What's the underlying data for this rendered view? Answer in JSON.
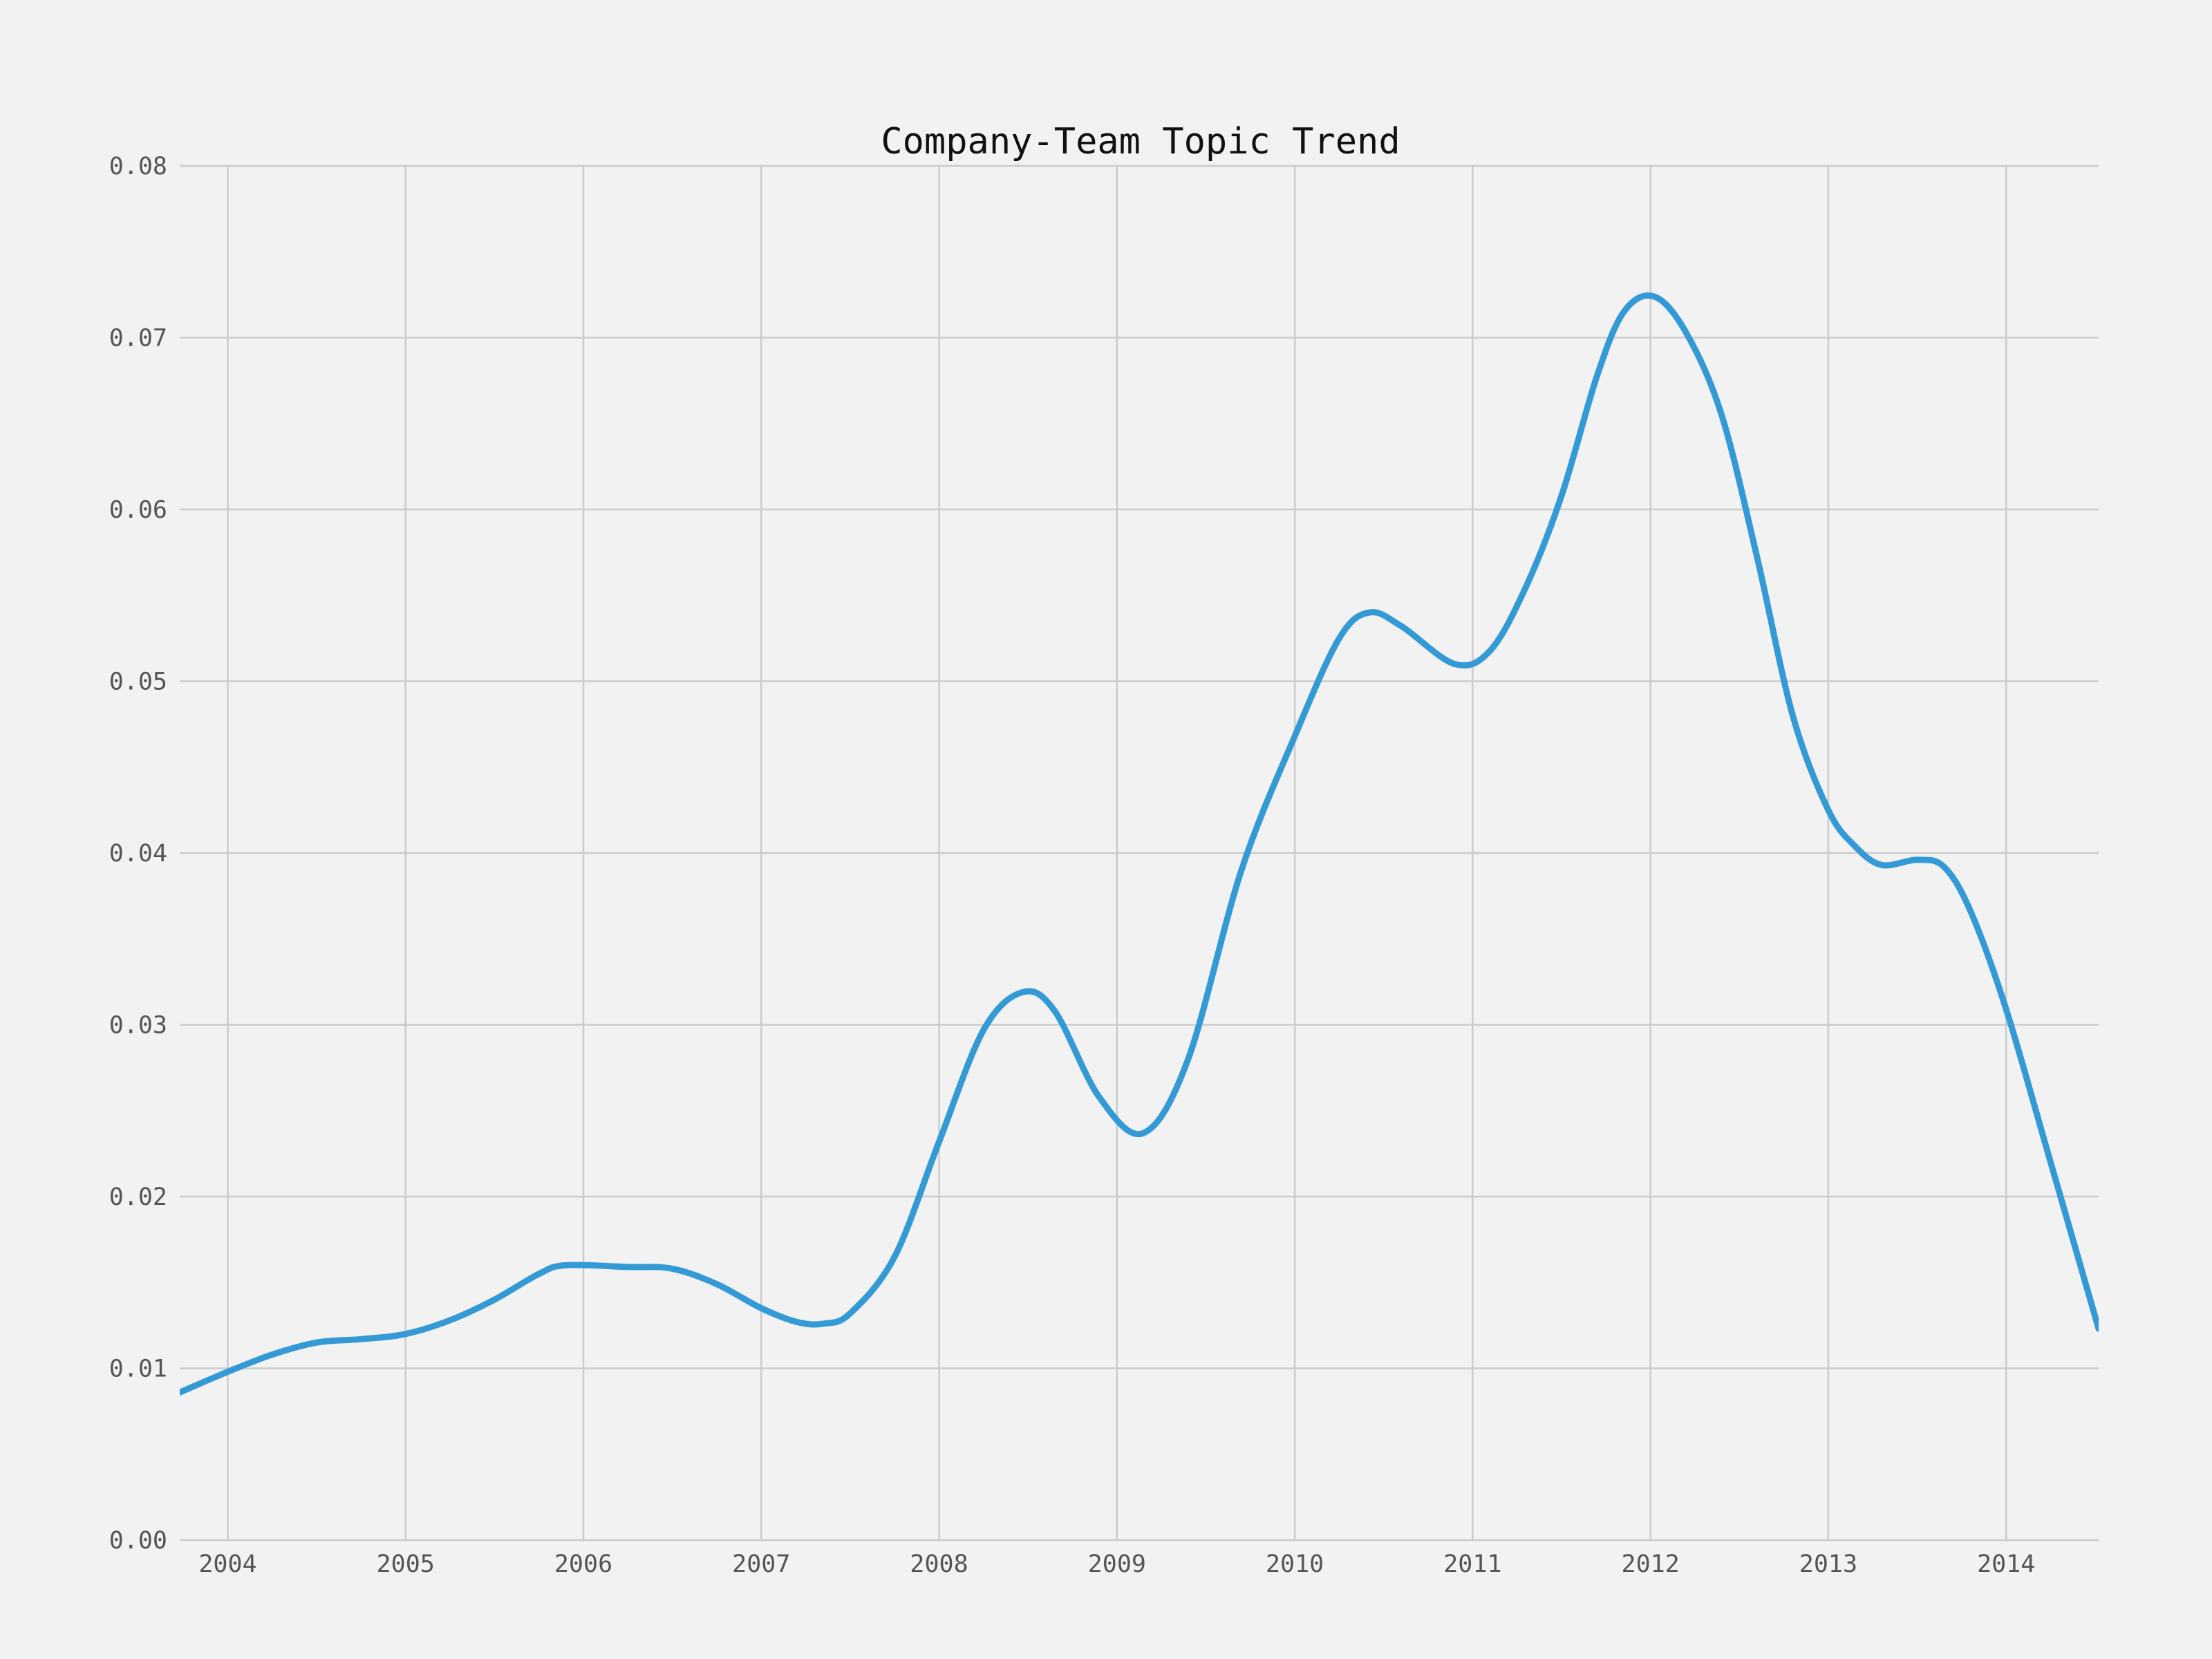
{
  "chart_data": {
    "type": "line",
    "title": "Company-Team Topic Trend",
    "xlabel": "",
    "ylabel": "",
    "xlim": [
      2003.73,
      2014.52
    ],
    "ylim": [
      0,
      0.08
    ],
    "x_ticks": [
      2004,
      2005,
      2006,
      2007,
      2008,
      2009,
      2010,
      2011,
      2012,
      2013,
      2014
    ],
    "x_tick_labels": [
      "2004",
      "2005",
      "2006",
      "2007",
      "2008",
      "2009",
      "2010",
      "2011",
      "2012",
      "2013",
      "2014"
    ],
    "y_ticks": [
      0,
      0.01,
      0.02,
      0.03,
      0.04,
      0.05,
      0.06,
      0.07,
      0.08
    ],
    "y_tick_labels": [
      "0.00",
      "0.01",
      "0.02",
      "0.03",
      "0.04",
      "0.05",
      "0.06",
      "0.07",
      "0.08"
    ],
    "grid": true,
    "legend": "none",
    "line_color": "#349ad5",
    "background_color": "#f2f2f2",
    "grid_color": "#cbcbcb",
    "series": [
      {
        "x": [
          2003.73,
          2004.0,
          2004.25,
          2004.5,
          2004.75,
          2005.0,
          2005.25,
          2005.5,
          2005.75,
          2005.9,
          2006.25,
          2006.5,
          2006.75,
          2007.0,
          2007.2,
          2007.35,
          2007.5,
          2007.75,
          2008.0,
          2008.25,
          2008.47,
          2008.65,
          2008.9,
          2009.15,
          2009.4,
          2009.7,
          2010.0,
          2010.25,
          2010.42,
          2010.6,
          2010.9,
          2011.1,
          2011.3,
          2011.5,
          2011.7,
          2011.85,
          2012.02,
          2012.2,
          2012.4,
          2012.6,
          2012.8,
          2013.0,
          2013.15,
          2013.3,
          2013.5,
          2013.65,
          2013.8,
          2014.0,
          2014.25,
          2014.52
        ],
        "y": [
          0.0086,
          0.0098,
          0.0108,
          0.0115,
          0.0117,
          0.012,
          0.0128,
          0.014,
          0.0155,
          0.016,
          0.0159,
          0.0158,
          0.0149,
          0.0135,
          0.0127,
          0.0126,
          0.0132,
          0.0165,
          0.0232,
          0.0297,
          0.0319,
          0.0308,
          0.0258,
          0.0237,
          0.028,
          0.039,
          0.0468,
          0.0525,
          0.054,
          0.0532,
          0.051,
          0.0518,
          0.0555,
          0.0608,
          0.0678,
          0.0715,
          0.0724,
          0.0703,
          0.0655,
          0.0572,
          0.048,
          0.0425,
          0.0404,
          0.0393,
          0.0396,
          0.0392,
          0.0366,
          0.0309,
          0.022,
          0.0123
        ]
      }
    ]
  }
}
